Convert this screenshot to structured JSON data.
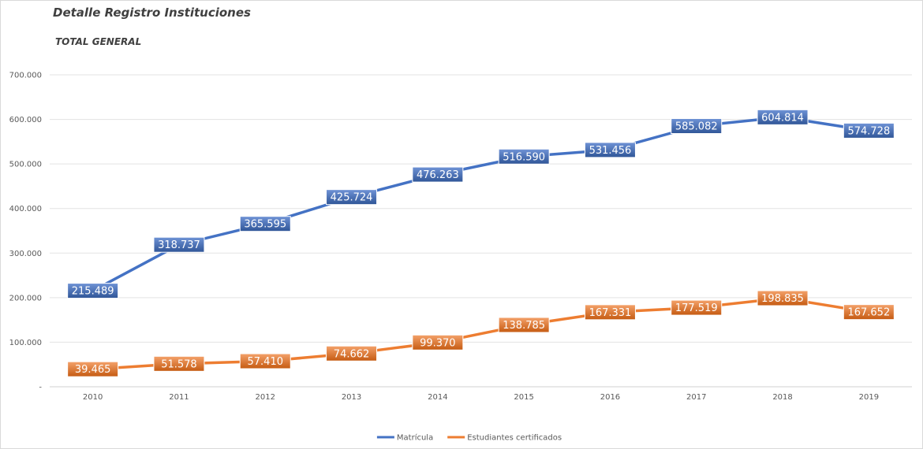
{
  "chart_data": {
    "type": "line",
    "title": "Detalle Registro Instituciones",
    "subtitle": "TOTAL GENERAL",
    "xlabel": "",
    "ylabel": "",
    "categories": [
      "2010",
      "2011",
      "2012",
      "2013",
      "2014",
      "2015",
      "2016",
      "2017",
      "2018",
      "2019"
    ],
    "ylim": [
      0,
      700000
    ],
    "yticks": [
      {
        "value": 0,
        "label": "-"
      },
      {
        "value": 100000,
        "label": "100.000"
      },
      {
        "value": 200000,
        "label": "200.000"
      },
      {
        "value": 300000,
        "label": "300.000"
      },
      {
        "value": 400000,
        "label": "400.000"
      },
      {
        "value": 500000,
        "label": "500.000"
      },
      {
        "value": 600000,
        "label": "600.000"
      },
      {
        "value": 700000,
        "label": "700.000"
      }
    ],
    "grid": true,
    "legend_position": "bottom",
    "series": [
      {
        "name": "Matrícula",
        "color": "#4472c4",
        "values": [
          215489,
          318737,
          365595,
          425724,
          476263,
          516590,
          531456,
          585082,
          604814,
          574728
        ],
        "labels": [
          "215.489",
          "318.737",
          "365.595",
          "425.724",
          "476.263",
          "516.590",
          "531.456",
          "585.082",
          "604.814",
          "574.728"
        ]
      },
      {
        "name": "Estudiantes certificados",
        "color": "#ed7d31",
        "values": [
          39465,
          51578,
          57410,
          74662,
          99370,
          138785,
          167331,
          177519,
          198835,
          167652
        ],
        "labels": [
          "39.465",
          "51.578",
          "57.410",
          "74.662",
          "99.370",
          "138.785",
          "167.331",
          "177.519",
          "198.835",
          "167.652"
        ]
      }
    ]
  }
}
